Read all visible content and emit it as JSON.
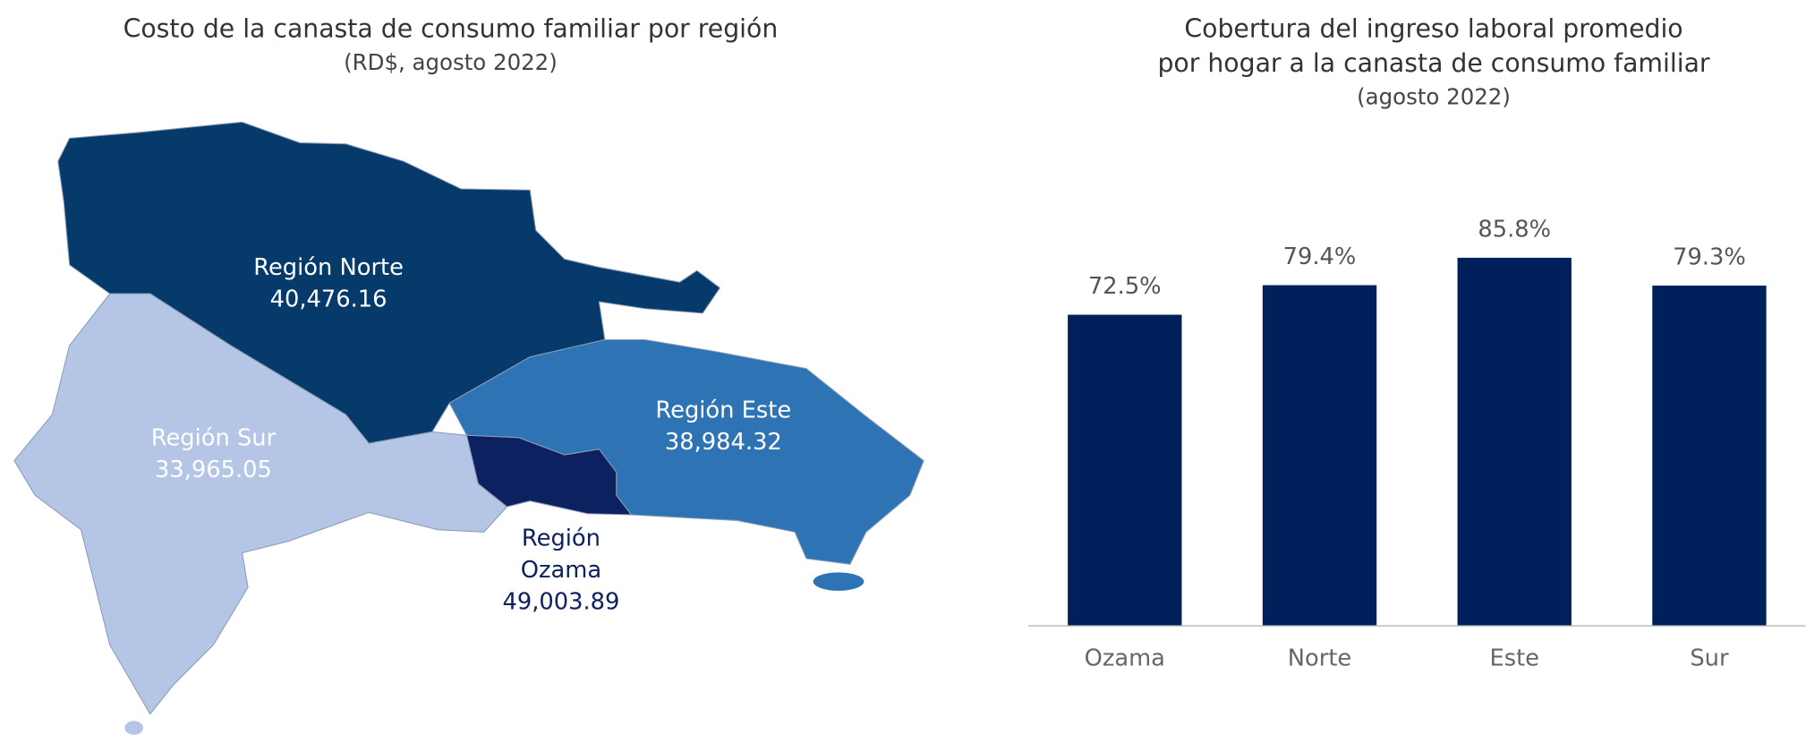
{
  "map": {
    "title": "Costo de la canasta de consumo familiar por región",
    "subtitle": "(RD$, agosto 2022)",
    "regions": [
      {
        "name_lines": [
          "Región Norte"
        ],
        "value": 40476.16,
        "value_label": "40,476.16",
        "color": "#063a6b",
        "text_color": "#ffffff"
      },
      {
        "name_lines": [
          "Región Sur"
        ],
        "value": 33965.05,
        "value_label": "33,965.05",
        "color": "#b4c5e6",
        "text_color": "#ffffff"
      },
      {
        "name_lines": [
          "Región Este"
        ],
        "value": 38984.32,
        "value_label": "38,984.32",
        "color": "#2e74b5",
        "text_color": "#ffffff"
      },
      {
        "name_lines": [
          "Región",
          "Ozama"
        ],
        "value": 49003.89,
        "value_label": "49,003.89",
        "color": "#0d2060",
        "text_color": "#0d2060"
      }
    ]
  },
  "chart_data": {
    "type": "bar",
    "title": [
      "Cobertura del ingreso laboral promedio",
      "por hogar a la canasta de consumo familiar"
    ],
    "subtitle": "(agosto 2022)",
    "categories": [
      "Ozama",
      "Norte",
      "Este",
      "Sur"
    ],
    "values": [
      72.5,
      79.4,
      85.8,
      79.3
    ],
    "value_labels": [
      "72.5%",
      "79.4%",
      "85.8%",
      "79.3%"
    ],
    "color": "#00205b",
    "ylim": [
      0,
      100
    ]
  }
}
